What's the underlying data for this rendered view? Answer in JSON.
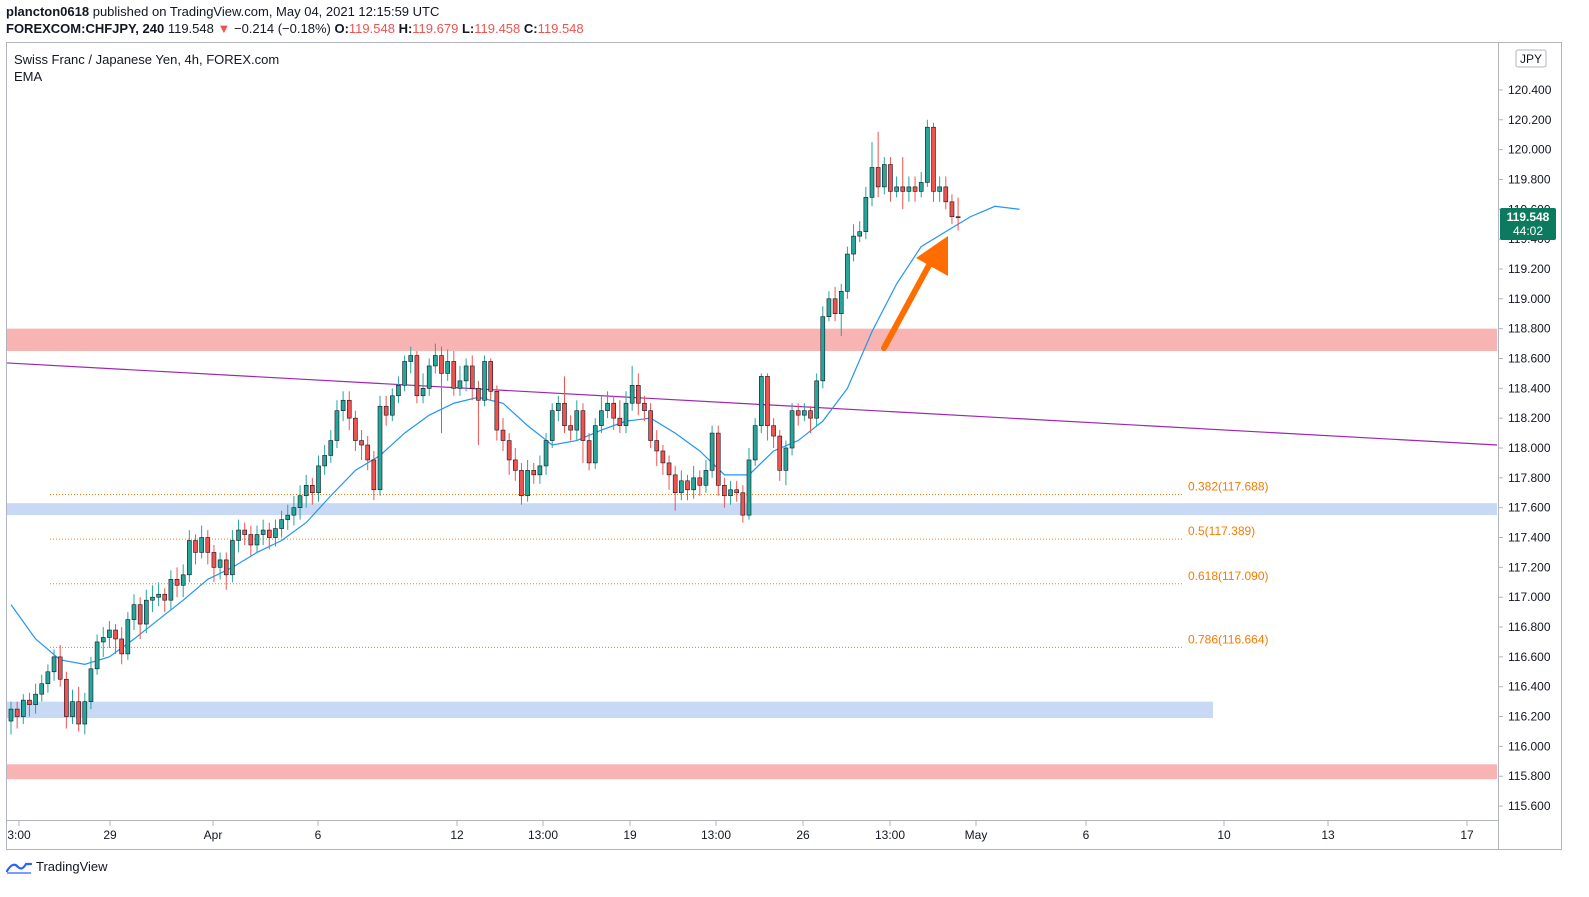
{
  "header": {
    "author": "plancton0618",
    "published": "published on TradingView.com, May 04, 2021 12:15:59 UTC",
    "symbol": "FOREXCOM:CHFJPY, 240",
    "last": "119.548",
    "arrow": "▼",
    "change": "−0.214 (−0.18%)",
    "o_label": "O:",
    "o_value": "119.548",
    "h_label": "H:",
    "h_value": "119.679",
    "l_label": "L:",
    "l_value": "119.458",
    "c_label": "C:",
    "c_value": "119.548"
  },
  "legend": {
    "title": "Swiss Franc / Japanese Yen, 4h, FOREX.com",
    "indicator": "EMA"
  },
  "currency_badge": "JPY",
  "price_tag": {
    "price": "119.548",
    "countdown": "44:02"
  },
  "footer": {
    "brand": "TradingView",
    "logo_icon": "tradingview-logo-icon"
  },
  "colors": {
    "bull": "#26a69a",
    "bear": "#ef5350",
    "ema": "#2196f3",
    "trendline": "#9c27b0",
    "fib": "#f57c00",
    "zone_red": "#f8b4b2",
    "zone_blue": "#c7d9f5",
    "arrow": "#ff6d00",
    "tag": "#0b7a5e"
  },
  "chart_data": {
    "type": "candlestick",
    "title": "Swiss Franc / Japanese Yen, 4h, FOREX.com",
    "y_axis": {
      "range": [
        115.5,
        121.0
      ],
      "ticks": [
        "115.600",
        "115.800",
        "116.000",
        "116.200",
        "116.400",
        "116.600",
        "116.800",
        "117.000",
        "117.200",
        "117.400",
        "117.600",
        "117.800",
        "118.000",
        "118.200",
        "118.400",
        "118.600",
        "118.800",
        "119.000",
        "119.200",
        "119.400",
        "119.600",
        "119.800",
        "120.000",
        "120.200",
        "120.400"
      ]
    },
    "x_axis": {
      "ticks": [
        "3:00",
        "29",
        "Apr",
        "6",
        "12",
        "13:00",
        "19",
        "13:00",
        "26",
        "13:00",
        "May",
        "6",
        "10",
        "13",
        "17"
      ]
    },
    "zones": [
      {
        "kind": "resistance",
        "from": 118.65,
        "to": 118.8
      },
      {
        "kind": "support",
        "from": 117.55,
        "to": 117.63
      },
      {
        "kind": "support",
        "from": 116.19,
        "to": 116.3
      },
      {
        "kind": "resistance",
        "from": 115.78,
        "to": 115.88
      }
    ],
    "fibonacci": [
      {
        "ratio": "0.382",
        "price": "117.688",
        "label": "0.382(117.688)"
      },
      {
        "ratio": "0.5",
        "price": "117.389",
        "label": "0.5(117.389)"
      },
      {
        "ratio": "0.618",
        "price": "117.090",
        "label": "0.618(117.090)"
      },
      {
        "ratio": "0.786",
        "price": "116.664",
        "label": "0.786(116.664)"
      }
    ],
    "trendline": {
      "start_price": 118.57,
      "end_price": 118.02
    },
    "last_price": 119.548,
    "candles": [
      [
        116.17,
        116.25,
        116.08,
        116.3
      ],
      [
        116.25,
        116.2,
        116.12,
        116.3
      ],
      [
        116.2,
        116.31,
        116.15,
        116.35
      ],
      [
        116.31,
        116.28,
        116.2,
        116.36
      ],
      [
        116.28,
        116.35,
        116.22,
        116.42
      ],
      [
        116.35,
        116.42,
        116.3,
        116.48
      ],
      [
        116.42,
        116.5,
        116.36,
        116.55
      ],
      [
        116.5,
        116.6,
        116.44,
        116.65
      ],
      [
        116.6,
        116.45,
        116.4,
        116.68
      ],
      [
        116.45,
        116.2,
        116.12,
        116.5
      ],
      [
        116.2,
        116.3,
        116.15,
        116.38
      ],
      [
        116.3,
        116.15,
        116.1,
        116.4
      ],
      [
        116.15,
        116.3,
        116.08,
        116.36
      ],
      [
        116.3,
        116.52,
        116.25,
        116.6
      ],
      [
        116.52,
        116.7,
        116.48,
        116.75
      ],
      [
        116.7,
        116.73,
        116.6,
        116.8
      ],
      [
        116.73,
        116.78,
        116.66,
        116.84
      ],
      [
        116.78,
        116.72,
        116.62,
        116.82
      ],
      [
        116.72,
        116.62,
        116.55,
        116.8
      ],
      [
        116.62,
        116.85,
        116.58,
        116.9
      ],
      [
        116.85,
        116.95,
        116.78,
        117.02
      ],
      [
        116.95,
        116.82,
        116.72,
        117.0
      ],
      [
        116.82,
        116.98,
        116.76,
        117.05
      ],
      [
        116.98,
        117.0,
        116.9,
        117.08
      ],
      [
        117.0,
        117.02,
        116.94,
        117.1
      ],
      [
        117.02,
        116.98,
        116.9,
        117.06
      ],
      [
        116.98,
        117.12,
        116.92,
        117.18
      ],
      [
        117.12,
        117.08,
        117.0,
        117.2
      ],
      [
        117.08,
        117.15,
        117.0,
        117.22
      ],
      [
        117.15,
        117.38,
        117.1,
        117.45
      ],
      [
        117.38,
        117.3,
        117.22,
        117.42
      ],
      [
        117.3,
        117.4,
        117.26,
        117.48
      ],
      [
        117.4,
        117.3,
        117.22,
        117.45
      ],
      [
        117.3,
        117.2,
        117.1,
        117.35
      ],
      [
        117.2,
        117.25,
        117.12,
        117.3
      ],
      [
        117.25,
        117.15,
        117.05,
        117.3
      ],
      [
        117.15,
        117.38,
        117.1,
        117.45
      ],
      [
        117.38,
        117.45,
        117.3,
        117.52
      ],
      [
        117.45,
        117.42,
        117.35,
        117.5
      ],
      [
        117.42,
        117.35,
        117.28,
        117.48
      ],
      [
        117.35,
        117.42,
        117.3,
        117.48
      ],
      [
        117.42,
        117.45,
        117.35,
        117.52
      ],
      [
        117.45,
        117.4,
        117.32,
        117.5
      ],
      [
        117.4,
        117.46,
        117.34,
        117.52
      ],
      [
        117.46,
        117.52,
        117.4,
        117.58
      ],
      [
        117.52,
        117.55,
        117.45,
        117.62
      ],
      [
        117.55,
        117.6,
        117.48,
        117.68
      ],
      [
        117.6,
        117.68,
        117.52,
        117.75
      ],
      [
        117.68,
        117.75,
        117.6,
        117.82
      ],
      [
        117.75,
        117.7,
        117.62,
        117.8
      ],
      [
        117.7,
        117.88,
        117.64,
        117.95
      ],
      [
        117.88,
        117.95,
        117.82,
        118.02
      ],
      [
        117.95,
        118.05,
        117.9,
        118.12
      ],
      [
        118.05,
        118.25,
        118.0,
        118.32
      ],
      [
        118.25,
        118.32,
        118.18,
        118.38
      ],
      [
        118.32,
        118.2,
        118.12,
        118.38
      ],
      [
        118.2,
        118.05,
        117.98,
        118.25
      ],
      [
        118.05,
        118.02,
        117.92,
        118.12
      ],
      [
        118.02,
        117.92,
        117.85,
        118.08
      ],
      [
        117.92,
        117.72,
        117.65,
        117.98
      ],
      [
        117.72,
        118.28,
        117.68,
        118.35
      ],
      [
        118.28,
        118.22,
        118.15,
        118.35
      ],
      [
        118.22,
        118.35,
        118.18,
        118.4
      ],
      [
        118.35,
        118.42,
        118.3,
        118.48
      ],
      [
        118.42,
        118.58,
        118.38,
        118.62
      ],
      [
        118.58,
        118.62,
        118.5,
        118.68
      ],
      [
        118.62,
        118.35,
        118.3,
        118.65
      ],
      [
        118.35,
        118.4,
        118.3,
        118.5
      ],
      [
        118.4,
        118.55,
        118.35,
        118.6
      ],
      [
        118.55,
        118.62,
        118.5,
        118.7
      ],
      [
        118.62,
        118.5,
        118.1,
        118.68
      ],
      [
        118.5,
        118.58,
        118.45,
        118.66
      ],
      [
        118.58,
        118.4,
        118.35,
        118.65
      ],
      [
        118.4,
        118.45,
        118.35,
        118.55
      ],
      [
        118.45,
        118.55,
        118.38,
        118.6
      ],
      [
        118.55,
        118.4,
        118.32,
        118.62
      ],
      [
        118.4,
        118.32,
        118.02,
        118.45
      ],
      [
        118.32,
        118.58,
        118.28,
        118.62
      ],
      [
        118.58,
        118.38,
        118.32,
        118.6
      ],
      [
        118.38,
        118.12,
        118.05,
        118.42
      ],
      [
        118.12,
        118.05,
        117.98,
        118.2
      ],
      [
        118.05,
        117.92,
        117.82,
        118.1
      ],
      [
        117.92,
        117.85,
        117.78,
        118.0
      ],
      [
        117.85,
        117.68,
        117.62,
        117.9
      ],
      [
        117.68,
        117.85,
        117.64,
        117.92
      ],
      [
        117.85,
        117.82,
        117.76,
        117.9
      ],
      [
        117.82,
        117.88,
        117.76,
        117.95
      ],
      [
        117.88,
        118.05,
        117.82,
        118.1
      ],
      [
        118.05,
        118.25,
        118.0,
        118.3
      ],
      [
        118.25,
        118.3,
        118.18,
        118.35
      ],
      [
        118.3,
        118.15,
        118.1,
        118.48
      ],
      [
        118.15,
        118.12,
        118.05,
        118.22
      ],
      [
        118.12,
        118.25,
        118.05,
        118.32
      ],
      [
        118.25,
        118.05,
        117.9,
        118.3
      ],
      [
        118.05,
        117.9,
        117.85,
        118.1
      ],
      [
        117.9,
        118.15,
        117.86,
        118.2
      ],
      [
        118.15,
        118.25,
        118.1,
        118.35
      ],
      [
        118.25,
        118.3,
        118.2,
        118.38
      ],
      [
        118.3,
        118.2,
        118.12,
        118.35
      ],
      [
        118.2,
        118.15,
        118.1,
        118.32
      ],
      [
        118.15,
        118.3,
        118.1,
        118.38
      ],
      [
        118.3,
        118.42,
        118.25,
        118.55
      ],
      [
        118.42,
        118.3,
        118.22,
        118.5
      ],
      [
        118.3,
        118.25,
        118.18,
        118.35
      ],
      [
        118.25,
        118.05,
        118.0,
        118.3
      ],
      [
        118.05,
        117.98,
        117.88,
        118.12
      ],
      [
        117.98,
        117.9,
        117.82,
        118.02
      ],
      [
        117.9,
        117.82,
        117.72,
        117.95
      ],
      [
        117.82,
        117.7,
        117.58,
        117.88
      ],
      [
        117.7,
        117.78,
        117.65,
        117.85
      ],
      [
        117.78,
        117.72,
        117.65,
        117.82
      ],
      [
        117.72,
        117.8,
        117.66,
        117.88
      ],
      [
        117.8,
        117.75,
        117.68,
        117.85
      ],
      [
        117.75,
        117.85,
        117.7,
        117.92
      ],
      [
        117.85,
        118.1,
        117.8,
        118.15
      ],
      [
        118.1,
        117.75,
        117.68,
        118.15
      ],
      [
        117.75,
        117.68,
        117.6,
        117.8
      ],
      [
        117.68,
        117.72,
        117.62,
        117.78
      ],
      [
        117.72,
        117.7,
        117.64,
        117.78
      ],
      [
        117.7,
        117.55,
        117.5,
        117.75
      ],
      [
        117.55,
        117.92,
        117.52,
        118.0
      ],
      [
        117.92,
        118.15,
        117.88,
        118.2
      ],
      [
        118.15,
        118.48,
        118.1,
        118.5
      ],
      [
        118.48,
        118.15,
        118.05,
        118.5
      ],
      [
        118.15,
        118.08,
        118.0,
        118.2
      ],
      [
        118.08,
        117.85,
        117.78,
        118.12
      ],
      [
        117.85,
        118.0,
        117.75,
        118.05
      ],
      [
        118.0,
        118.25,
        117.95,
        118.3
      ],
      [
        118.25,
        118.22,
        118.15,
        118.3
      ],
      [
        118.22,
        118.25,
        118.18,
        118.3
      ],
      [
        118.25,
        118.2,
        118.1,
        118.28
      ],
      [
        118.2,
        118.45,
        118.15,
        118.5
      ],
      [
        118.45,
        118.88,
        118.4,
        118.95
      ],
      [
        118.88,
        119.0,
        118.85,
        119.05
      ],
      [
        119.0,
        118.9,
        118.85,
        119.08
      ],
      [
        118.9,
        119.05,
        118.75,
        119.1
      ],
      [
        119.05,
        119.3,
        119.0,
        119.35
      ],
      [
        119.3,
        119.42,
        119.25,
        119.5
      ],
      [
        119.42,
        119.45,
        119.38,
        119.52
      ],
      [
        119.45,
        119.68,
        119.4,
        119.75
      ],
      [
        119.68,
        119.88,
        119.62,
        120.05
      ],
      [
        119.88,
        119.75,
        119.68,
        120.12
      ],
      [
        119.75,
        119.9,
        119.7,
        119.95
      ],
      [
        119.9,
        119.72,
        119.65,
        119.95
      ],
      [
        119.72,
        119.75,
        119.68,
        119.82
      ],
      [
        119.75,
        119.72,
        119.6,
        119.95
      ],
      [
        119.72,
        119.75,
        119.65,
        119.82
      ],
      [
        119.75,
        119.72,
        119.65,
        119.82
      ],
      [
        119.72,
        119.78,
        119.68,
        119.85
      ],
      [
        119.78,
        120.15,
        119.75,
        120.2
      ],
      [
        120.15,
        119.72,
        119.65,
        120.18
      ],
      [
        119.72,
        119.75,
        119.65,
        119.82
      ],
      [
        119.75,
        119.65,
        119.6,
        119.82
      ],
      [
        119.65,
        119.55,
        119.5,
        119.7
      ],
      [
        119.55,
        119.548,
        119.458,
        119.679
      ]
    ],
    "ema": [
      [
        0,
        116.95
      ],
      [
        4,
        116.72
      ],
      [
        8,
        116.58
      ],
      [
        12,
        116.55
      ],
      [
        16,
        116.6
      ],
      [
        20,
        116.72
      ],
      [
        24,
        116.85
      ],
      [
        28,
        116.98
      ],
      [
        32,
        117.12
      ],
      [
        36,
        117.2
      ],
      [
        40,
        117.3
      ],
      [
        44,
        117.38
      ],
      [
        48,
        117.5
      ],
      [
        52,
        117.68
      ],
      [
        56,
        117.85
      ],
      [
        60,
        117.95
      ],
      [
        64,
        118.1
      ],
      [
        68,
        118.22
      ],
      [
        72,
        118.3
      ],
      [
        76,
        118.34
      ],
      [
        80,
        118.3
      ],
      [
        84,
        118.15
      ],
      [
        88,
        118.02
      ],
      [
        92,
        118.05
      ],
      [
        96,
        118.12
      ],
      [
        100,
        118.18
      ],
      [
        104,
        118.2
      ],
      [
        108,
        118.1
      ],
      [
        112,
        117.98
      ],
      [
        116,
        117.82
      ],
      [
        120,
        117.82
      ],
      [
        124,
        117.98
      ],
      [
        128,
        118.05
      ],
      [
        132,
        118.18
      ],
      [
        136,
        118.4
      ],
      [
        140,
        118.78
      ],
      [
        144,
        119.1
      ],
      [
        148,
        119.35
      ],
      [
        152,
        119.45
      ],
      [
        156,
        119.55
      ],
      [
        160,
        119.62
      ],
      [
        164,
        119.6
      ]
    ]
  }
}
